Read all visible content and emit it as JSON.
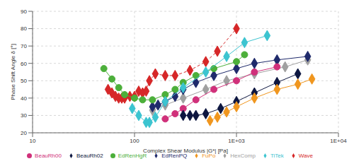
{
  "chart_data": {
    "type": "scatter",
    "x_label": "Complex Shear Modulus |G*| [Pa]",
    "y_label": "Phase Shift Angle δ [°]",
    "log": "x",
    "grid": true,
    "legend": "bottom",
    "xlim": [
      10,
      10000
    ],
    "xticks": [
      {
        "value": 10,
        "label": "10"
      },
      {
        "value": 100,
        "label": "100"
      },
      {
        "value": 1000,
        "label": "1E+03"
      },
      {
        "value": 10000,
        "label": "1E+04"
      }
    ],
    "ylim": [
      20,
      90
    ],
    "yticks": [
      20,
      30,
      40,
      50,
      60,
      70,
      80,
      90
    ],
    "series": [
      {
        "name": "Wave",
        "color": "#d62728",
        "marker": "diamond",
        "line_style": "dashed",
        "x": [
          55,
          60,
          65,
          70,
          75,
          80,
          90,
          100,
          110,
          120,
          130,
          140,
          160,
          200,
          250,
          350,
          500,
          650,
          1000
        ],
        "values": [
          45,
          43,
          41,
          40,
          40,
          40,
          41,
          41,
          44,
          43,
          44,
          50,
          54,
          53,
          53,
          56,
          61,
          67,
          80
        ]
      },
      {
        "name": "HexComp",
        "color": "#a0a0a0",
        "marker": "diamond",
        "line_style": "solid",
        "x": [
          150,
          200,
          300,
          500,
          800,
          1500,
          3000,
          5000
        ],
        "values": [
          33,
          36,
          40,
          45,
          50,
          54,
          58,
          62
        ]
      },
      {
        "name": "EdRenPQ",
        "color": "#1f2a6b",
        "marker": "diamond",
        "line_style": "solid",
        "x": [
          150,
          170,
          200,
          250,
          300,
          400,
          600,
          1000,
          1500,
          2500,
          5000
        ],
        "values": [
          35,
          36,
          38,
          41,
          45,
          49,
          53,
          57,
          60,
          62,
          64
        ]
      },
      {
        "name": "EdRenHgR",
        "color": "#4caf3a",
        "marker": "circle",
        "line_style": "solid",
        "x": [
          50,
          60,
          70,
          80,
          100,
          120,
          150,
          200,
          250,
          300,
          400,
          600,
          1000,
          1200
        ],
        "values": [
          57,
          51,
          46,
          42,
          40,
          39,
          39,
          42,
          45,
          49,
          53,
          57,
          61,
          65
        ]
      },
      {
        "name": "BeauRh00",
        "color": "#d0307a",
        "marker": "circle",
        "line_style": "solid",
        "x": [
          200,
          250,
          300,
          400,
          600,
          1000,
          1500,
          2500
        ],
        "values": [
          28,
          31,
          34,
          39,
          45,
          50,
          55,
          58
        ]
      },
      {
        "name": "BeauRh02",
        "color": "#0d1640",
        "marker": "diamond",
        "line_style": "solid",
        "x": [
          300,
          350,
          400,
          500,
          700,
          1000,
          1500,
          2500,
          4000
        ],
        "values": [
          30,
          30,
          30,
          31,
          34,
          38,
          43,
          49,
          54
        ]
      },
      {
        "name": "FuPo",
        "color": "#f0961e",
        "marker": "diamond",
        "line_style": "solid",
        "x": [
          550,
          650,
          800,
          1000,
          1500,
          2500,
          4000,
          5500
        ],
        "values": [
          27,
          29,
          32,
          35,
          40,
          45,
          48,
          51
        ]
      },
      {
        "name": "TiTek",
        "color": "#3cc4d0",
        "marker": "diamond",
        "line_style": "solid",
        "x": [
          95,
          110,
          130,
          140,
          160,
          200,
          300,
          500,
          800,
          1200,
          2000
        ],
        "values": [
          34,
          30,
          26,
          26,
          29,
          38,
          46,
          55,
          64,
          72,
          76
        ]
      }
    ]
  }
}
